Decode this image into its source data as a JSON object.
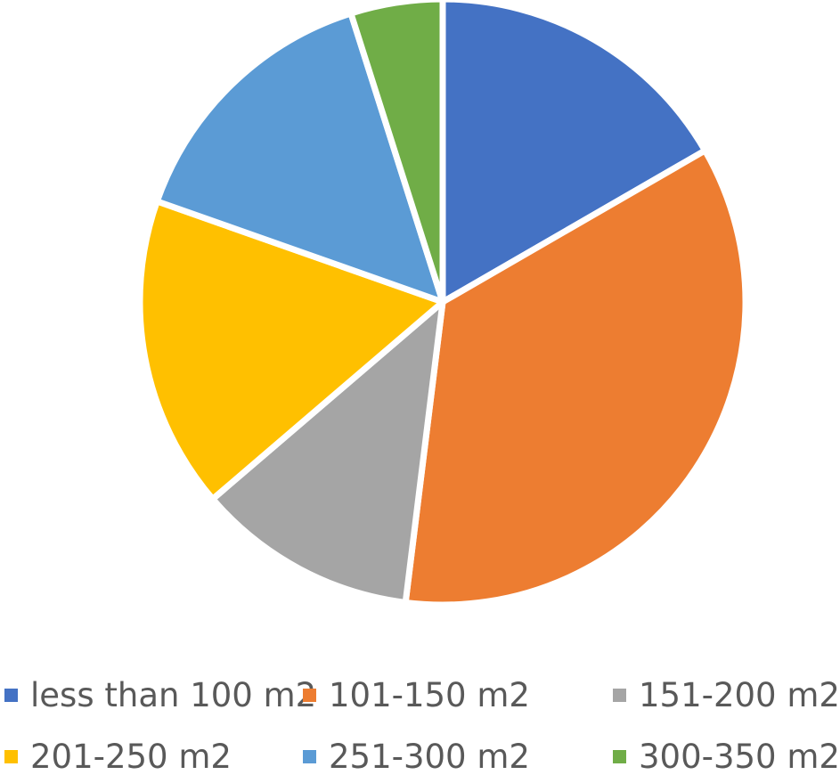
{
  "chart_data": {
    "type": "pie",
    "title": "",
    "categories": [
      "less than 100 m2",
      "101-150 m2",
      "151-200 m2",
      "201-250 m2",
      "251-300 m2",
      "300-350 m2"
    ],
    "values": [
      17,
      36,
      12,
      17,
      15,
      5
    ],
    "colors": [
      "#4472C4",
      "#ED7D31",
      "#A5A5A5",
      "#FFC000",
      "#5B9BD5",
      "#70AD47"
    ],
    "legend_position": "bottom",
    "data_labels": false
  }
}
